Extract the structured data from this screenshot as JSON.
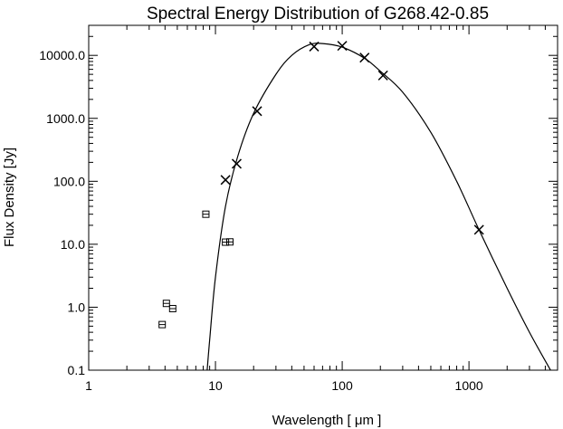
{
  "chart_data": {
    "type": "scatter",
    "title": "Spectral Energy Distribution of G268.42-0.85",
    "xlabel": "Wavelength [ μm ]",
    "ylabel": "Flux Density [Jy]",
    "x_scale": "log",
    "y_scale": "log",
    "xlim": [
      1,
      5000
    ],
    "ylim": [
      0.1,
      30000
    ],
    "grid": false,
    "x_ticks": [
      1,
      10,
      100,
      1000
    ],
    "x_tick_labels": [
      "1",
      "10",
      "100",
      "1000"
    ],
    "y_ticks": [
      0.1,
      1,
      10,
      100,
      1000,
      10000
    ],
    "y_tick_labels": [
      "0.1",
      "1.0",
      "10.0",
      "100.0",
      "1000.0",
      "10000.0"
    ],
    "series": [
      {
        "marker": "x",
        "points": [
          {
            "x": 12,
            "y": 105
          },
          {
            "x": 14.7,
            "y": 190
          },
          {
            "x": 21.3,
            "y": 1300
          },
          {
            "x": 60,
            "y": 13800
          },
          {
            "x": 100,
            "y": 14200
          },
          {
            "x": 150,
            "y": 9200
          },
          {
            "x": 210,
            "y": 4800
          },
          {
            "x": 1200,
            "y": 17
          }
        ]
      },
      {
        "marker": "boxed-square",
        "points": [
          {
            "x": 3.8,
            "y": 0.53
          },
          {
            "x": 4.1,
            "y": 1.15
          },
          {
            "x": 4.6,
            "y": 0.95
          },
          {
            "x": 8.4,
            "y": 30
          },
          {
            "x": 12.0,
            "y": 10.8
          },
          {
            "x": 13.0,
            "y": 10.9
          }
        ]
      },
      {
        "marker": "none",
        "line": "fitted-model",
        "points": [
          {
            "x": 8.6,
            "y": 0.1
          },
          {
            "x": 9,
            "y": 0.3
          },
          {
            "x": 10,
            "y": 3
          },
          {
            "x": 12,
            "y": 40
          },
          {
            "x": 15,
            "y": 250
          },
          {
            "x": 20,
            "y": 1200
          },
          {
            "x": 30,
            "y": 5000
          },
          {
            "x": 40,
            "y": 10000
          },
          {
            "x": 55,
            "y": 14800
          },
          {
            "x": 70,
            "y": 15400
          },
          {
            "x": 100,
            "y": 13500
          },
          {
            "x": 150,
            "y": 9000
          },
          {
            "x": 200,
            "y": 5600
          },
          {
            "x": 300,
            "y": 2600
          },
          {
            "x": 500,
            "y": 600
          },
          {
            "x": 800,
            "y": 100
          },
          {
            "x": 1200,
            "y": 17
          },
          {
            "x": 2000,
            "y": 2
          },
          {
            "x": 3000,
            "y": 0.4
          },
          {
            "x": 4400,
            "y": 0.1
          }
        ]
      }
    ]
  }
}
